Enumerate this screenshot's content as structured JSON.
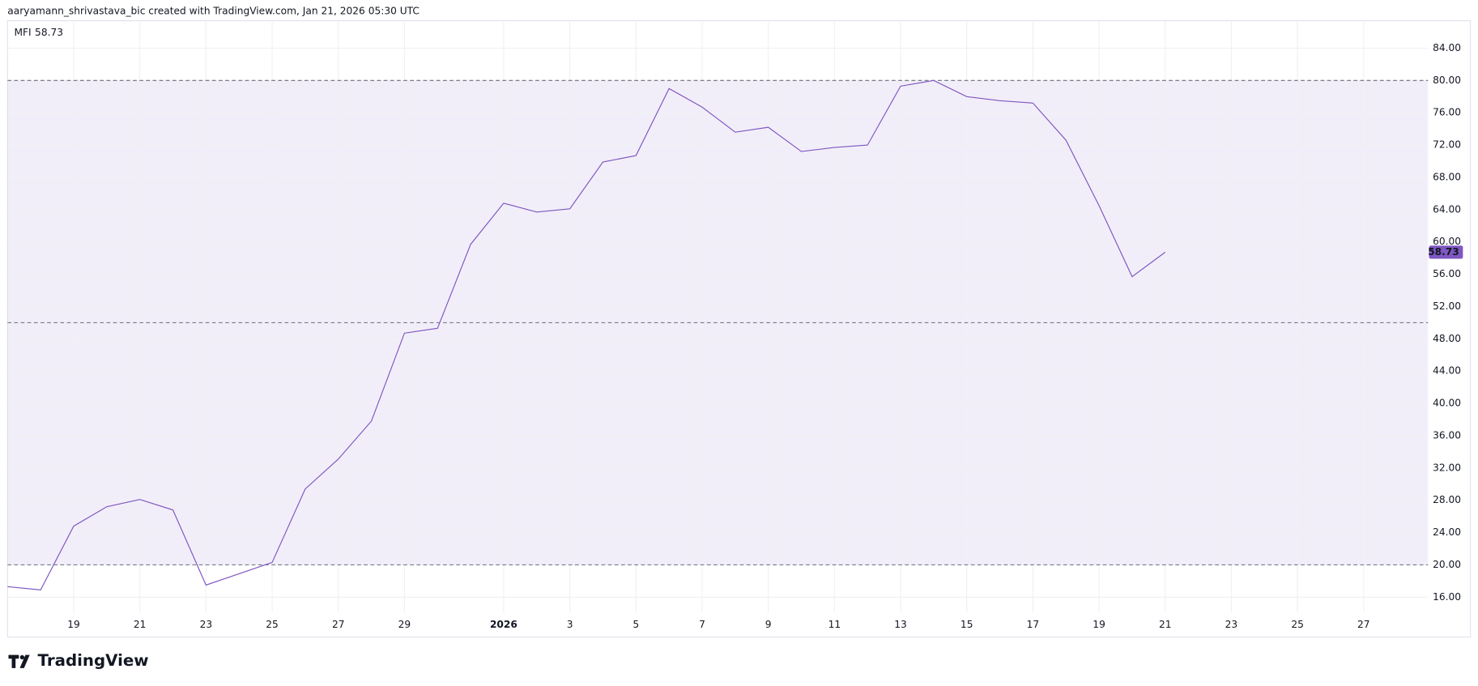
{
  "header": {
    "attribution": "aaryamann_shrivastava_bic created with TradingView.com, Jan 21, 2026 05:30 UTC"
  },
  "footer": {
    "brand": "TradingView"
  },
  "chart_data": {
    "type": "line",
    "title": "MFI",
    "categories": [
      null,
      null,
      "19",
      null,
      "21",
      null,
      "23",
      null,
      "25",
      null,
      "27",
      null,
      "29",
      null,
      null,
      "2026",
      null,
      "3",
      null,
      "5",
      null,
      "7",
      null,
      "9",
      null,
      "11",
      null,
      "13",
      null,
      "15",
      null,
      "17",
      null,
      "19",
      null,
      "21",
      null,
      "23",
      null,
      "25",
      null,
      "27",
      null
    ],
    "series": [
      {
        "name": "MFI",
        "color": "#7e57c2",
        "values": [
          17.3,
          16.9,
          24.8,
          27.2,
          28.1,
          26.8,
          17.5,
          18.9,
          20.3,
          29.4,
          33.1,
          37.8,
          48.7,
          49.3,
          59.7,
          64.8,
          63.7,
          64.1,
          69.9,
          70.7,
          79.0,
          76.7,
          73.6,
          74.2,
          71.2,
          71.7,
          72.0,
          79.3,
          80.0,
          78.0,
          77.5,
          77.2,
          72.6,
          64.5,
          55.7,
          58.73,
          null,
          null,
          null,
          null,
          null,
          null,
          null
        ]
      }
    ],
    "bands": {
      "upper": 80,
      "middle": 50,
      "lower": 20,
      "fill": "rgba(126,87,194,0.1)"
    },
    "ylim": [
      14.1,
      87.4
    ],
    "yticks": [
      {
        "value": 16,
        "label": "16.00"
      },
      {
        "value": 20,
        "label": "20.00"
      },
      {
        "value": 24,
        "label": "24.00"
      },
      {
        "value": 28,
        "label": "28.00"
      },
      {
        "value": 32,
        "label": "32.00"
      },
      {
        "value": 36,
        "label": "36.00"
      },
      {
        "value": 40,
        "label": "40.00"
      },
      {
        "value": 44,
        "label": "44.00"
      },
      {
        "value": 48,
        "label": "48.00"
      },
      {
        "value": 52,
        "label": "52.00"
      },
      {
        "value": 56,
        "label": "56.00"
      },
      {
        "value": 60,
        "label": "60.00"
      },
      {
        "value": 64,
        "label": "64.00"
      },
      {
        "value": 68,
        "label": "68.00"
      },
      {
        "value": 72,
        "label": "72.00"
      },
      {
        "value": 76,
        "label": "76.00"
      },
      {
        "value": 80,
        "label": "80.00"
      },
      {
        "value": 84,
        "label": "84.00"
      }
    ],
    "grid": true
  }
}
